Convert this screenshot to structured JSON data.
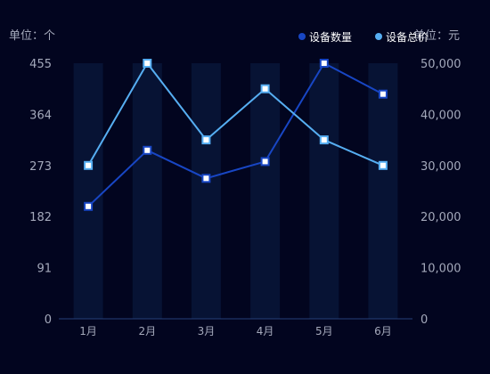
{
  "chart_data": {
    "type": "line",
    "categories": [
      "1月",
      "2月",
      "3月",
      "4月",
      "5月",
      "6月"
    ],
    "y_left": {
      "unit_label": "单位：个",
      "ticks": [
        "0",
        "91",
        "182",
        "273",
        "364",
        "455"
      ],
      "range": [
        0,
        455
      ]
    },
    "y_right": {
      "unit_label": "单位：元",
      "ticks": [
        "0",
        "10,000",
        "20,000",
        "30,000",
        "40,000",
        "50,000"
      ],
      "range": [
        0,
        50000
      ]
    },
    "series": [
      {
        "name": "设备数量",
        "axis": "left",
        "color": "#1846c4",
        "values": [
          200,
          300,
          250,
          280,
          455,
          400
        ]
      },
      {
        "name": "设备总价",
        "axis": "right",
        "color": "#56aef2",
        "values": [
          30000,
          50000,
          35000,
          45000,
          35000,
          30000
        ]
      }
    ],
    "background_bars": true,
    "grid": false,
    "legend_position": "top-right"
  }
}
